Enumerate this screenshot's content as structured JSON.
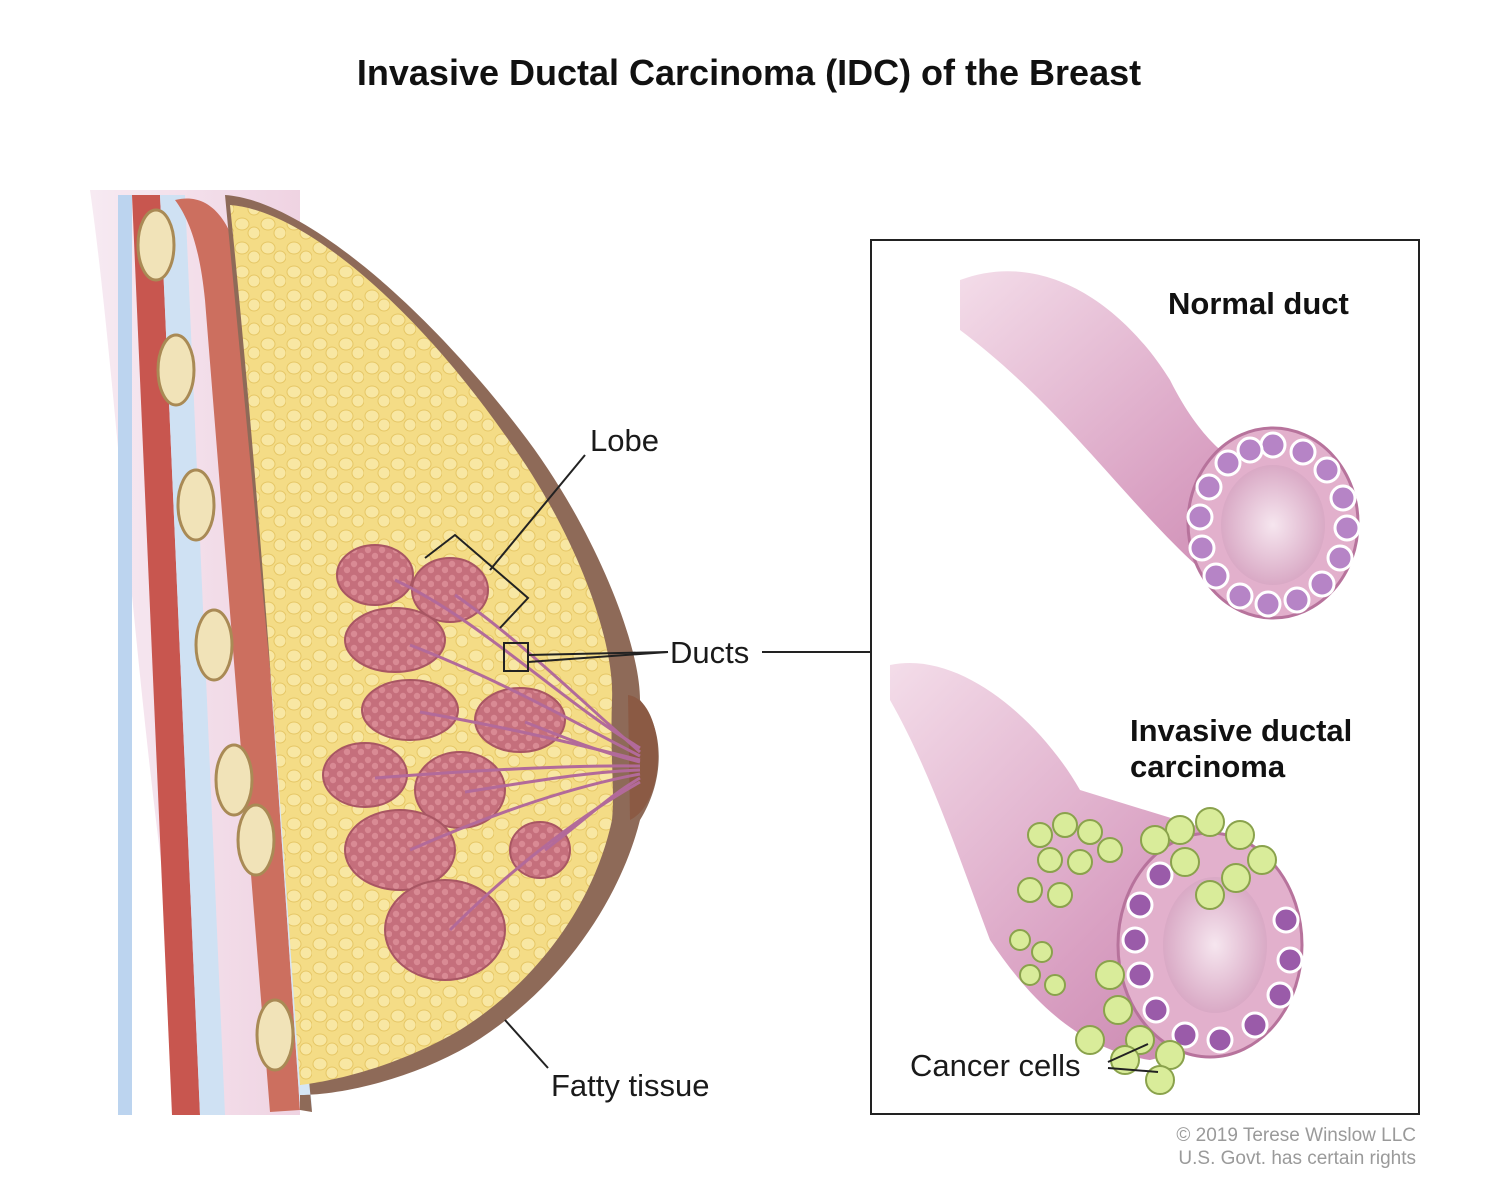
{
  "title": "Invasive Ductal Carcinoma (IDC) of the Breast",
  "labels": {
    "lobe": "Lobe",
    "ducts": "Ducts",
    "fatty_tissue": "Fatty tissue",
    "normal_duct": "Normal duct",
    "idc_line1": "Invasive ductal",
    "idc_line2": "carcinoma",
    "cancer_cells": "Cancer cells"
  },
  "credit": {
    "line1": "© 2019 Terese Winslow LLC",
    "line2": "U.S. Govt. has certain rights"
  }
}
